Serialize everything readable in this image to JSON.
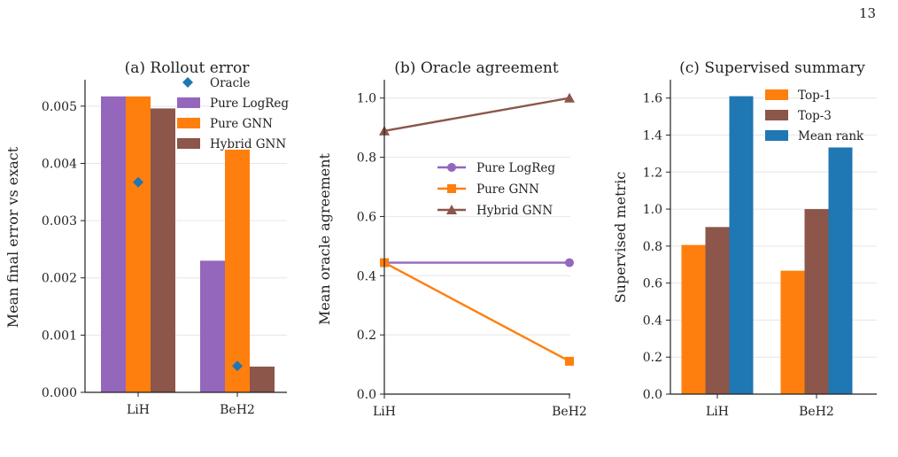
{
  "page_number": "13",
  "colors": {
    "logreg": "#9467bd",
    "gnn": "#ff7f0e",
    "hybrid": "#8c564b",
    "oracle": "#1f77b4",
    "top1": "#ff7f0e",
    "top3": "#8c564b",
    "meanrank": "#1f77b4"
  },
  "chart_data": [
    {
      "type": "bar",
      "title": "(a) Rollout error",
      "xlabel": "",
      "ylabel": "Mean final error vs exact",
      "categories": [
        "LiH",
        "BeH2"
      ],
      "ylim": [
        0,
        0.0054
      ],
      "yticks": [
        "0.000",
        "0.001",
        "0.002",
        "0.003",
        "0.004",
        "0.005"
      ],
      "series": [
        {
          "name": "Pure LogReg",
          "values": [
            0.00517,
            0.0023
          ]
        },
        {
          "name": "Pure GNN",
          "values": [
            0.00517,
            0.00424
          ]
        },
        {
          "name": "Hybrid GNN",
          "values": [
            0.00496,
            0.00045
          ]
        }
      ],
      "markers": {
        "name": "Oracle",
        "values": [
          0.00367,
          0.00046
        ]
      },
      "legend": [
        "Oracle",
        "Pure LogReg",
        "Pure GNN",
        "Hybrid GNN"
      ],
      "legend_position": "top-right",
      "grid": "horizontal"
    },
    {
      "type": "line",
      "title": "(b) Oracle agreement",
      "xlabel": "",
      "ylabel": "Mean oracle agreement",
      "categories": [
        "LiH",
        "BeH2"
      ],
      "ylim": [
        0,
        1.05
      ],
      "yticks": [
        "0.0",
        "0.2",
        "0.4",
        "0.6",
        "0.8",
        "1.0"
      ],
      "series": [
        {
          "name": "Pure LogReg",
          "values": [
            0.444,
            0.444
          ],
          "marker": "circle"
        },
        {
          "name": "Pure GNN",
          "values": [
            0.444,
            0.111
          ],
          "marker": "square"
        },
        {
          "name": "Hybrid GNN",
          "values": [
            0.889,
            1.0
          ],
          "marker": "triangle"
        }
      ],
      "legend_position": "center-right",
      "grid": "horizontal"
    },
    {
      "type": "bar",
      "title": "(c) Supervised summary",
      "xlabel": "",
      "ylabel": "Supervised metric",
      "categories": [
        "LiH",
        "BeH2"
      ],
      "ylim": [
        0,
        1.68
      ],
      "yticks": [
        "0.0",
        "0.2",
        "0.4",
        "0.6",
        "0.8",
        "1.0",
        "1.2",
        "1.4",
        "1.6"
      ],
      "series": [
        {
          "name": "Top-1",
          "values": [
            0.806,
            0.667
          ]
        },
        {
          "name": "Top-3",
          "values": [
            0.903,
            1.0
          ]
        },
        {
          "name": "Mean rank",
          "values": [
            1.61,
            1.333
          ]
        }
      ],
      "legend_position": "top-right",
      "grid": "horizontal"
    }
  ]
}
